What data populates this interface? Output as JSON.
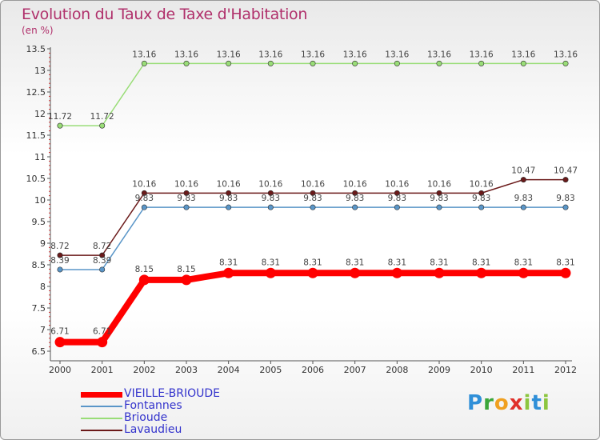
{
  "title": "Evolution du Taux de Taxe d'Habitation",
  "subtitle": "(en %)",
  "brand": "Proxiti",
  "chart_data": {
    "type": "line",
    "title": "Evolution du Taux de Taxe d'Habitation",
    "ylabel": "(en %)",
    "xlabel": "",
    "x": [
      "2000",
      "2001",
      "2002",
      "2003",
      "2004",
      "2005",
      "2006",
      "2007",
      "2008",
      "2009",
      "2010",
      "2011",
      "2012"
    ],
    "ylim": [
      6.5,
      13.5
    ],
    "yticks": [
      "6.5",
      "7",
      "7.5",
      "8",
      "8.5",
      "9",
      "9.5",
      "10",
      "10.5",
      "11",
      "11.5",
      "12",
      "12.5",
      "13",
      "13.5"
    ],
    "series": [
      {
        "name": "Lavaudieu",
        "color": "#6b1a1a",
        "values": [
          8.72,
          8.72,
          10.16,
          10.16,
          10.16,
          10.16,
          10.16,
          10.16,
          10.16,
          10.16,
          10.16,
          10.47,
          10.47
        ]
      },
      {
        "name": "Brioude",
        "color": "#99dd77",
        "values": [
          11.72,
          11.72,
          13.16,
          13.16,
          13.16,
          13.16,
          13.16,
          13.16,
          13.16,
          13.16,
          13.16,
          13.16,
          13.16
        ]
      },
      {
        "name": "Fontannes",
        "color": "#5a96c8",
        "values": [
          8.39,
          8.39,
          9.83,
          9.83,
          9.83,
          9.83,
          9.83,
          9.83,
          9.83,
          9.83,
          9.83,
          9.83,
          9.83
        ]
      },
      {
        "name": "VIEILLE-BRIOUDE",
        "color": "#ff0000",
        "values": [
          6.71,
          6.71,
          8.15,
          8.15,
          8.31,
          8.31,
          8.31,
          8.31,
          8.31,
          8.31,
          8.31,
          8.31,
          8.31
        ]
      }
    ],
    "legend": [
      {
        "name": "VIEILLE-BRIOUDE",
        "color": "#ff0000",
        "text_color": "#3333cc"
      },
      {
        "name": "Fontannes",
        "color": "#5a96c8",
        "text_color": "#3333cc"
      },
      {
        "name": "Brioude",
        "color": "#99dd77",
        "text_color": "#3333cc"
      },
      {
        "name": "Lavaudieu",
        "color": "#6b1a1a",
        "text_color": "#3333cc"
      }
    ],
    "legend_position": "bottom-left",
    "grid": false
  }
}
